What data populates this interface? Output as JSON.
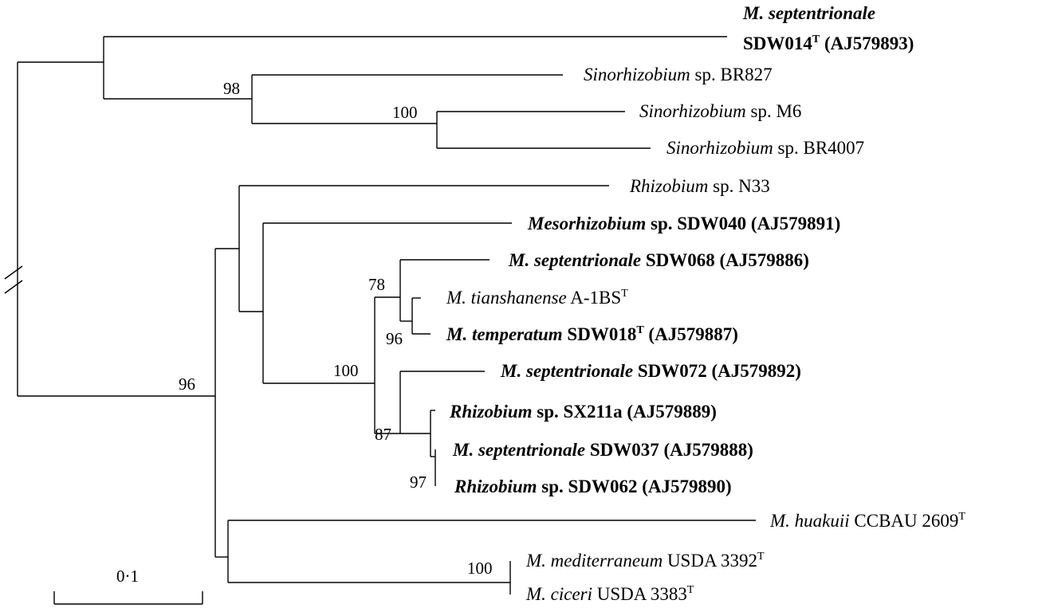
{
  "taxa": [
    {
      "id": "t1",
      "line1_italic": "M. septentrionale",
      "line2_plain": "SDW014",
      "line2_sup": "T",
      "line2_tail": " (AJ579893)",
      "bold": true
    },
    {
      "id": "t2",
      "genus": "Sinorhizobium",
      "strain": " sp. BR827",
      "bold": false
    },
    {
      "id": "t3",
      "genus": "Sinorhizobium",
      "strain": " sp. M6",
      "bold": false
    },
    {
      "id": "t4",
      "genus": "Sinorhizobium",
      "strain": " sp. BR4007",
      "bold": false
    },
    {
      "id": "t5",
      "genus": "Rhizobium",
      "strain": " sp. N33",
      "bold": false
    },
    {
      "id": "t6",
      "genus": "Mesorhizobium",
      "strain": " sp. SDW040 (AJ579891)",
      "bold": true
    },
    {
      "id": "t7",
      "genus": "M. septentrionale",
      "strain": " SDW068 (AJ579886)",
      "bold": true
    },
    {
      "id": "t8",
      "genus": "M. tianshanense",
      "strain": " A-1BS",
      "sup": "T",
      "bold": false
    },
    {
      "id": "t9",
      "genus": "M. temperatum",
      "strain": " SDW018",
      "sup": "T",
      "tail": " (AJ579887)",
      "bold": true
    },
    {
      "id": "t10",
      "genus": "M. septentrionale",
      "strain": " SDW072 (AJ579892)",
      "bold": true
    },
    {
      "id": "t11",
      "genus": "Rhizobium",
      "strain": " sp. SX211a (AJ579889)",
      "bold": true
    },
    {
      "id": "t12",
      "genus": "M. septentrionale",
      "strain": " SDW037 (AJ579888)",
      "bold": true
    },
    {
      "id": "t13",
      "genus": "Rhizobium",
      "strain": " sp. SDW062 (AJ579890)",
      "bold": true
    },
    {
      "id": "t14",
      "genus": "M. huakuii",
      "strain": " CCBAU 2609",
      "sup": "T",
      "bold": false
    },
    {
      "id": "t15",
      "genus": "M. mediterraneum",
      "strain": " USDA 3392",
      "sup": "T",
      "bold": false
    },
    {
      "id": "t16",
      "genus": "M. ciceri",
      "strain": " USDA 3383",
      "sup": "T",
      "bold": false
    }
  ],
  "bootstrap": {
    "b98": "98",
    "b100a": "100",
    "b78": "78",
    "b96a": "96",
    "b100b": "100",
    "b87": "87",
    "b97": "97",
    "b96b": "96",
    "b100c": "100"
  },
  "scale_bar": {
    "label": "0·1"
  }
}
